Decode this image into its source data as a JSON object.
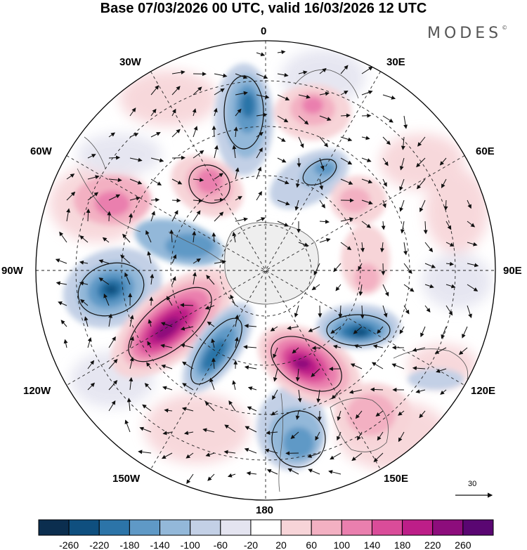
{
  "title": "Base 07/03/2026 00 UTC, valid 16/03/2026 12 UTC",
  "brand": {
    "name": "MODES",
    "mark": "©"
  },
  "longitude_labels": {
    "lon_0": "0",
    "lon_30e": "30E",
    "lon_60e": "60E",
    "lon_90e": "90E",
    "lon_120e": "120E",
    "lon_150e": "150E",
    "lon_180": "180",
    "lon_150w": "150W",
    "lon_120w": "120W",
    "lon_90w": "90W",
    "lon_60w": "60W",
    "lon_30w": "30W"
  },
  "wind_scale": {
    "label": "30"
  },
  "colorbar": {
    "ticks": [
      "-260",
      "-220",
      "-180",
      "-140",
      "-100",
      "-60",
      "-20",
      "20",
      "60",
      "100",
      "140",
      "180",
      "220",
      "260"
    ],
    "colors": [
      "#0b2e4f",
      "#0f4f7f",
      "#2c74a8",
      "#5f99c6",
      "#93b8d9",
      "#c3d0e6",
      "#e4e4f0",
      "#ffffff",
      "#f7d4d8",
      "#f3b0c2",
      "#ea7fae",
      "#da4c99",
      "#bd1e88",
      "#8d0d7c",
      "#5a0672"
    ]
  },
  "map_data": {
    "field": "anomaly",
    "anomalies": [
      {
        "sign": "neg",
        "value": -180,
        "desc": "near 0 longitude, mid latitude"
      },
      {
        "sign": "pos",
        "value": 100,
        "desc": "near 25E mid latitude"
      },
      {
        "sign": "neg",
        "value": -140,
        "desc": "near 40E"
      },
      {
        "sign": "pos",
        "value": 140,
        "desc": "near 25W"
      },
      {
        "sign": "pos",
        "value": 100,
        "desc": "near 60W"
      },
      {
        "sign": "neg",
        "value": -140,
        "desc": "near 75W"
      },
      {
        "sign": "neg",
        "value": -220,
        "desc": "near 100W"
      },
      {
        "sign": "pos",
        "value": 260,
        "desc": "near 125W"
      },
      {
        "sign": "neg",
        "value": -180,
        "desc": "near 150W"
      },
      {
        "sign": "pos",
        "value": 260,
        "desc": "near 165E"
      },
      {
        "sign": "neg",
        "value": -220,
        "desc": "near 120E"
      },
      {
        "sign": "pos",
        "value": 140,
        "desc": "near 140E"
      },
      {
        "sign": "neg",
        "value": -140,
        "desc": "near 175W"
      },
      {
        "sign": "pos",
        "value": 100,
        "desc": "near 70E"
      }
    ]
  }
}
